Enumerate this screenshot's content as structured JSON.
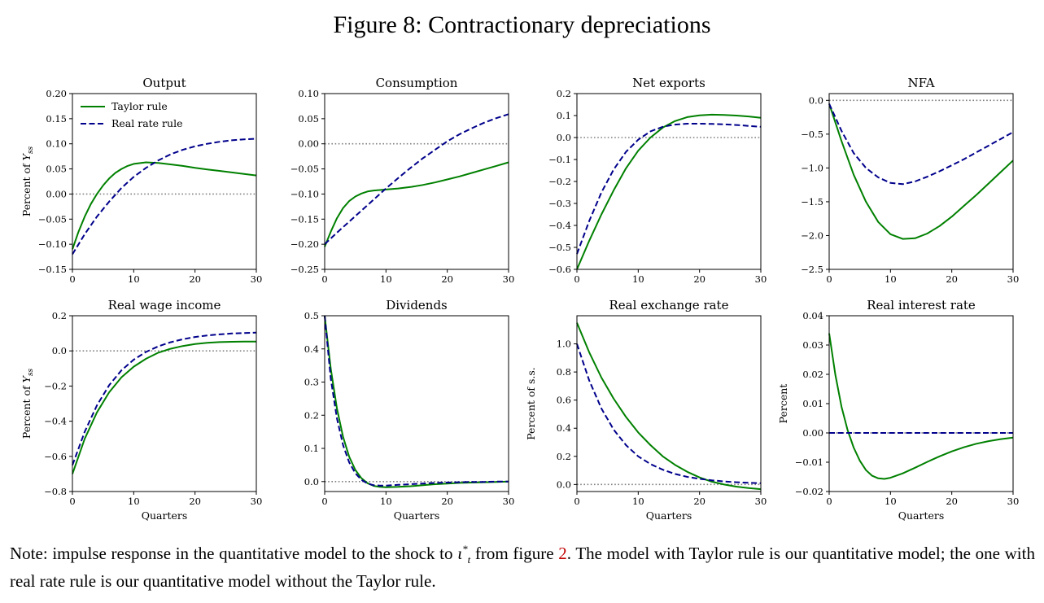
{
  "figure": {
    "title": "Figure 8: Contractionary depreciations",
    "note": {
      "text_before": "Note: impulse response in the quantitative model to the shock to ",
      "symbol": "ι",
      "symbol_sup": "*",
      "symbol_sub": "t",
      "text_middle": " from figure ",
      "figure_ref": "2",
      "text_after": ". The model with Taylor rule is our quantitative model; the one with real rate rule is our quantitative model without the Taylor rule."
    },
    "colors": {
      "taylor": "#008000",
      "real_rate": "#00008b",
      "zero_line": "#808080",
      "axis": "#000000"
    }
  },
  "chart_data": [
    {
      "type": "line",
      "title": "Output",
      "ylabel": "Percent of Y_ss",
      "xlabel": "",
      "xlim": [
        0,
        30
      ],
      "ylim": [
        -0.15,
        0.2
      ],
      "xticks": [
        "0",
        "10",
        "20",
        "30"
      ],
      "yticks": [
        "0.20",
        "0.15",
        "0.10",
        "0.05",
        "0.00",
        "−0.05",
        "−0.10",
        "−0.15"
      ],
      "ytick_values": [
        0.2,
        0.15,
        0.1,
        0.05,
        0.0,
        -0.05,
        -0.1,
        -0.15
      ],
      "zero_line": 0,
      "legend": "top-left",
      "series": [
        {
          "name": "Taylor rule",
          "style": "solid",
          "x": [
            0,
            1,
            2,
            3,
            4,
            5,
            6,
            7,
            8,
            9,
            10,
            12,
            14,
            16,
            18,
            20,
            22,
            24,
            26,
            28,
            30
          ],
          "y": [
            -0.11,
            -0.075,
            -0.045,
            -0.02,
            0.0,
            0.017,
            0.031,
            0.042,
            0.05,
            0.056,
            0.06,
            0.063,
            0.062,
            0.059,
            0.056,
            0.052,
            0.049,
            0.046,
            0.043,
            0.04,
            0.037
          ]
        },
        {
          "name": "Real rate rule",
          "style": "dashed",
          "x": [
            0,
            2,
            4,
            6,
            8,
            10,
            12,
            14,
            16,
            18,
            20,
            22,
            24,
            26,
            28,
            30
          ],
          "y": [
            -0.12,
            -0.08,
            -0.045,
            -0.015,
            0.012,
            0.034,
            0.052,
            0.067,
            0.079,
            0.088,
            0.095,
            0.1,
            0.104,
            0.107,
            0.109,
            0.11
          ]
        }
      ]
    },
    {
      "type": "line",
      "title": "Consumption",
      "ylabel": "",
      "xlabel": "",
      "xlim": [
        0,
        30
      ],
      "ylim": [
        -0.25,
        0.1
      ],
      "xticks": [
        "0",
        "10",
        "20",
        "30"
      ],
      "yticks": [
        "0.10",
        "0.05",
        "0.00",
        "−0.05",
        "−0.10",
        "−0.15",
        "−0.20",
        "−0.25"
      ],
      "ytick_values": [
        0.1,
        0.05,
        0.0,
        -0.05,
        -0.1,
        -0.15,
        -0.2,
        -0.25
      ],
      "zero_line": 0,
      "series": [
        {
          "name": "Taylor rule",
          "style": "solid",
          "x": [
            0,
            1,
            2,
            3,
            4,
            5,
            6,
            7,
            8,
            9,
            10,
            12,
            14,
            16,
            18,
            20,
            22,
            24,
            26,
            28,
            30
          ],
          "y": [
            -0.205,
            -0.175,
            -0.148,
            -0.128,
            -0.114,
            -0.105,
            -0.099,
            -0.095,
            -0.093,
            -0.092,
            -0.091,
            -0.089,
            -0.086,
            -0.082,
            -0.077,
            -0.071,
            -0.065,
            -0.058,
            -0.051,
            -0.044,
            -0.037
          ]
        },
        {
          "name": "Real rate rule",
          "style": "dashed",
          "x": [
            0,
            2,
            4,
            6,
            8,
            10,
            12,
            14,
            16,
            18,
            20,
            22,
            24,
            26,
            28,
            30
          ],
          "y": [
            -0.2,
            -0.177,
            -0.155,
            -0.133,
            -0.111,
            -0.089,
            -0.068,
            -0.048,
            -0.029,
            -0.012,
            0.005,
            0.019,
            0.031,
            0.042,
            0.051,
            0.059
          ]
        }
      ]
    },
    {
      "type": "line",
      "title": "Net exports",
      "ylabel": "",
      "xlabel": "",
      "xlim": [
        0,
        30
      ],
      "ylim": [
        -0.6,
        0.2
      ],
      "xticks": [
        "0",
        "10",
        "20",
        "30"
      ],
      "yticks": [
        "0.2",
        "0.1",
        "0.0",
        "−0.1",
        "−0.2",
        "−0.3",
        "−0.4",
        "−0.5",
        "−0.6"
      ],
      "ytick_values": [
        0.2,
        0.1,
        0.0,
        -0.1,
        -0.2,
        -0.3,
        -0.4,
        -0.5,
        -0.6
      ],
      "zero_line": 0,
      "series": [
        {
          "name": "Taylor rule",
          "style": "solid",
          "x": [
            0,
            2,
            4,
            6,
            8,
            10,
            12,
            14,
            16,
            18,
            20,
            22,
            24,
            26,
            28,
            30
          ],
          "y": [
            -0.6,
            -0.47,
            -0.35,
            -0.24,
            -0.14,
            -0.06,
            0.0,
            0.045,
            0.075,
            0.093,
            0.101,
            0.104,
            0.103,
            0.1,
            0.096,
            0.09
          ]
        },
        {
          "name": "Real rate rule",
          "style": "dashed",
          "x": [
            0,
            2,
            4,
            6,
            8,
            10,
            12,
            14,
            16,
            18,
            20,
            22,
            24,
            26,
            28,
            30
          ],
          "y": [
            -0.53,
            -0.38,
            -0.25,
            -0.145,
            -0.065,
            -0.01,
            0.028,
            0.049,
            0.059,
            0.063,
            0.063,
            0.062,
            0.06,
            0.057,
            0.053,
            0.049
          ]
        }
      ]
    },
    {
      "type": "line",
      "title": "NFA",
      "ylabel": "",
      "xlabel": "",
      "xlim": [
        0,
        30
      ],
      "ylim": [
        -2.5,
        0.1
      ],
      "xticks": [
        "0",
        "10",
        "20",
        "30"
      ],
      "yticks": [
        "0.0",
        "−0.5",
        "−1.0",
        "−1.5",
        "−2.0",
        "−2.5"
      ],
      "ytick_values": [
        0.0,
        -0.5,
        -1.0,
        -1.5,
        -2.0,
        -2.5
      ],
      "zero_line": 0,
      "series": [
        {
          "name": "Taylor rule",
          "style": "solid",
          "x": [
            0,
            2,
            4,
            6,
            8,
            10,
            12,
            14,
            16,
            18,
            20,
            22,
            24,
            26,
            28,
            30
          ],
          "y": [
            -0.05,
            -0.6,
            -1.1,
            -1.5,
            -1.8,
            -1.98,
            -2.05,
            -2.04,
            -1.97,
            -1.86,
            -1.72,
            -1.56,
            -1.4,
            -1.23,
            -1.06,
            -0.89
          ]
        },
        {
          "name": "Real rate rule",
          "style": "dashed",
          "x": [
            0,
            2,
            4,
            6,
            8,
            10,
            12,
            14,
            16,
            18,
            20,
            22,
            24,
            26,
            28,
            30
          ],
          "y": [
            -0.05,
            -0.45,
            -0.78,
            -1.0,
            -1.14,
            -1.22,
            -1.24,
            -1.2,
            -1.13,
            -1.05,
            -0.96,
            -0.87,
            -0.77,
            -0.67,
            -0.57,
            -0.47
          ]
        }
      ]
    },
    {
      "type": "line",
      "title": "Real wage income",
      "ylabel": "Percent of Y_ss",
      "xlabel": "Quarters",
      "xlim": [
        0,
        30
      ],
      "ylim": [
        -0.8,
        0.2
      ],
      "xticks": [
        "0",
        "10",
        "20",
        "30"
      ],
      "yticks": [
        "0.2",
        "0.0",
        "−0.2",
        "−0.4",
        "−0.6",
        "−0.8"
      ],
      "ytick_values": [
        0.2,
        0.0,
        -0.2,
        -0.4,
        -0.6,
        -0.8
      ],
      "zero_line": 0,
      "series": [
        {
          "name": "Taylor rule",
          "style": "solid",
          "x": [
            0,
            2,
            4,
            6,
            8,
            10,
            12,
            14,
            16,
            18,
            20,
            22,
            24,
            26,
            28,
            30
          ],
          "y": [
            -0.7,
            -0.5,
            -0.35,
            -0.235,
            -0.15,
            -0.09,
            -0.045,
            -0.01,
            0.012,
            0.028,
            0.039,
            0.046,
            0.05,
            0.052,
            0.053,
            0.053
          ]
        },
        {
          "name": "Real rate rule",
          "style": "dashed",
          "x": [
            0,
            2,
            4,
            6,
            8,
            10,
            12,
            14,
            16,
            18,
            20,
            22,
            24,
            26,
            28,
            30
          ],
          "y": [
            -0.65,
            -0.46,
            -0.31,
            -0.195,
            -0.11,
            -0.05,
            -0.006,
            0.026,
            0.049,
            0.066,
            0.079,
            0.088,
            0.094,
            0.099,
            0.102,
            0.104
          ]
        }
      ]
    },
    {
      "type": "line",
      "title": "Dividends",
      "ylabel": "",
      "xlabel": "Quarters",
      "xlim": [
        0,
        30
      ],
      "ylim": [
        -0.03,
        0.5
      ],
      "xticks": [
        "0",
        "10",
        "20",
        "30"
      ],
      "yticks": [
        "0.5",
        "0.4",
        "0.3",
        "0.2",
        "0.1",
        "0.0"
      ],
      "ytick_values": [
        0.5,
        0.4,
        0.3,
        0.2,
        0.1,
        0.0
      ],
      "zero_line": 0,
      "series": [
        {
          "name": "Taylor rule",
          "style": "solid",
          "x": [
            0,
            1,
            2,
            3,
            4,
            5,
            6,
            7,
            8,
            9,
            10,
            12,
            14,
            16,
            18,
            20,
            22,
            24,
            26,
            28,
            30
          ],
          "y": [
            0.5,
            0.34,
            0.22,
            0.135,
            0.075,
            0.035,
            0.01,
            -0.005,
            -0.013,
            -0.016,
            -0.017,
            -0.016,
            -0.014,
            -0.011,
            -0.008,
            -0.006,
            -0.004,
            -0.003,
            -0.002,
            -0.001,
            0.0
          ]
        },
        {
          "name": "Real rate rule",
          "style": "dashed",
          "x": [
            0,
            1,
            2,
            3,
            4,
            5,
            6,
            7,
            8,
            9,
            10,
            12,
            14,
            16,
            18,
            20,
            22,
            24,
            26,
            28,
            30
          ],
          "y": [
            0.5,
            0.31,
            0.19,
            0.11,
            0.058,
            0.025,
            0.005,
            -0.006,
            -0.011,
            -0.012,
            -0.012,
            -0.01,
            -0.008,
            -0.006,
            -0.004,
            -0.003,
            -0.002,
            -0.001,
            -0.001,
            0.0,
            0.0
          ]
        }
      ]
    },
    {
      "type": "line",
      "title": "Real exchange rate",
      "ylabel": "Percent of s.s.",
      "xlabel": "Quarters",
      "xlim": [
        0,
        30
      ],
      "ylim": [
        -0.05,
        1.2
      ],
      "xticks": [
        "0",
        "10",
        "20",
        "30"
      ],
      "yticks": [
        "1.0",
        "0.8",
        "0.6",
        "0.4",
        "0.2",
        "0.0"
      ],
      "ytick_values": [
        1.0,
        0.8,
        0.6,
        0.4,
        0.2,
        0.0
      ],
      "zero_line": 0,
      "series": [
        {
          "name": "Taylor rule",
          "style": "solid",
          "x": [
            0,
            2,
            4,
            6,
            8,
            10,
            12,
            14,
            16,
            18,
            20,
            22,
            24,
            26,
            28,
            30
          ],
          "y": [
            1.15,
            0.94,
            0.76,
            0.61,
            0.48,
            0.37,
            0.28,
            0.2,
            0.14,
            0.09,
            0.05,
            0.02,
            0.0,
            -0.015,
            -0.025,
            -0.033
          ]
        },
        {
          "name": "Real rate rule",
          "style": "dashed",
          "x": [
            0,
            2,
            4,
            6,
            8,
            10,
            12,
            14,
            16,
            18,
            20,
            22,
            24,
            26,
            28,
            30
          ],
          "y": [
            1.0,
            0.74,
            0.54,
            0.39,
            0.28,
            0.2,
            0.145,
            0.105,
            0.075,
            0.054,
            0.04,
            0.03,
            0.022,
            0.016,
            0.012,
            0.009
          ]
        }
      ]
    },
    {
      "type": "line",
      "title": "Real interest rate",
      "ylabel": "Percent",
      "xlabel": "Quarters",
      "xlim": [
        0,
        30
      ],
      "ylim": [
        -0.02,
        0.04
      ],
      "xticks": [
        "0",
        "10",
        "20",
        "30"
      ],
      "yticks": [
        "0.04",
        "0.03",
        "0.02",
        "0.01",
        "0.00",
        "−0.01",
        "−0.02"
      ],
      "ytick_values": [
        0.04,
        0.03,
        0.02,
        0.01,
        0.0,
        -0.01,
        -0.02
      ],
      "zero_line": 0,
      "series": [
        {
          "name": "Taylor rule",
          "style": "solid",
          "x": [
            0,
            1,
            2,
            3,
            4,
            5,
            6,
            7,
            8,
            9,
            10,
            12,
            14,
            16,
            18,
            20,
            22,
            24,
            26,
            28,
            30
          ],
          "y": [
            0.034,
            0.02,
            0.009,
            0.001,
            -0.005,
            -0.0095,
            -0.0127,
            -0.0146,
            -0.0155,
            -0.0157,
            -0.0153,
            -0.0138,
            -0.0119,
            -0.0099,
            -0.008,
            -0.0063,
            -0.0049,
            -0.0037,
            -0.0028,
            -0.0021,
            -0.0016
          ]
        },
        {
          "name": "Real rate rule",
          "style": "dashed",
          "x": [
            0,
            30
          ],
          "y": [
            0.0,
            0.0
          ]
        }
      ]
    }
  ]
}
